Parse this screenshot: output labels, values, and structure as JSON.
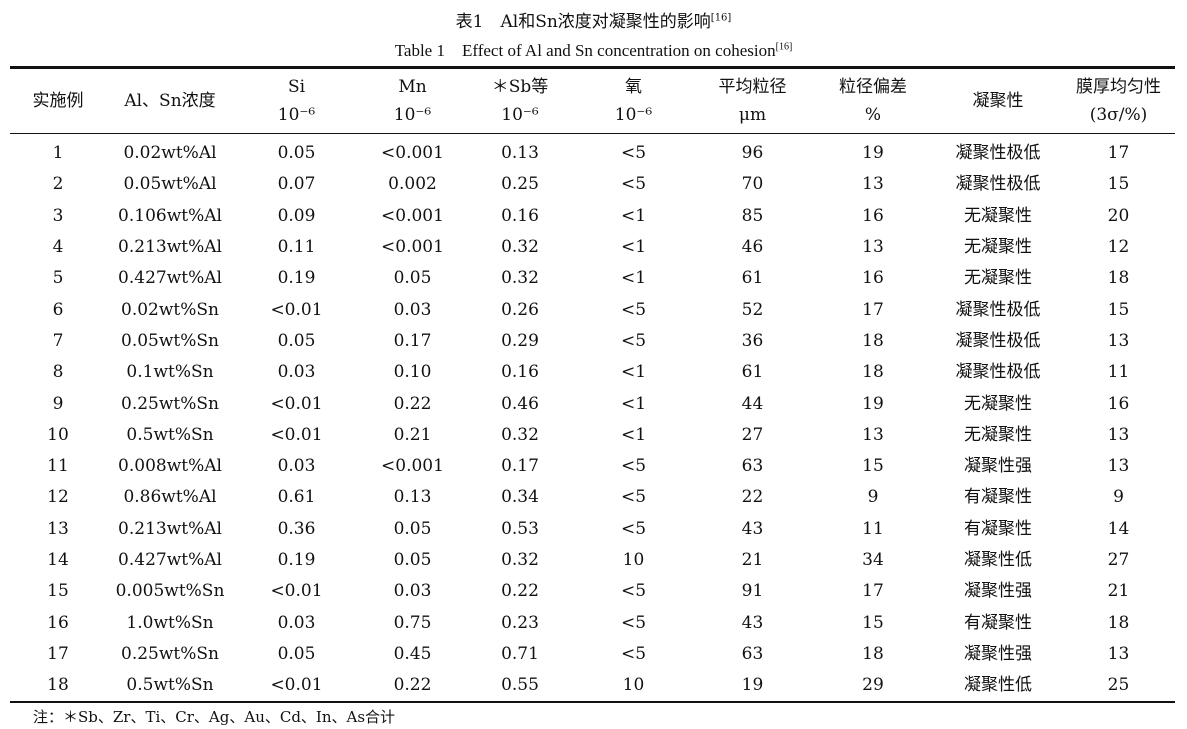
{
  "title": {
    "zh": "表1　Al和Sn浓度对凝聚性的影响",
    "en": "Table 1　Effect of Al and Sn concentration on cohesion",
    "ref": "[16]"
  },
  "columns": [
    {
      "label": "实施例",
      "unit": ""
    },
    {
      "label": "Al、Sn浓度",
      "unit": ""
    },
    {
      "label": "Si",
      "unit": "10⁻⁶"
    },
    {
      "label": "Mn",
      "unit": "10⁻⁶"
    },
    {
      "label": "＊Sb等",
      "unit": "10⁻⁶"
    },
    {
      "label": "氧",
      "unit": "10⁻⁶"
    },
    {
      "label": "平均粒径",
      "unit": "μm"
    },
    {
      "label": "粒径偏差",
      "unit": "%"
    },
    {
      "label": "凝聚性",
      "unit": ""
    },
    {
      "label": "膜厚均匀性",
      "unit": "(3σ/%)"
    }
  ],
  "rows": [
    [
      "1",
      "0.02wt%Al",
      "0.05",
      "<0.001",
      "0.13",
      "<5",
      "96",
      "19",
      "凝聚性极低",
      "17"
    ],
    [
      "2",
      "0.05wt%Al",
      "0.07",
      "0.002",
      "0.25",
      "<5",
      "70",
      "13",
      "凝聚性极低",
      "15"
    ],
    [
      "3",
      "0.106wt%Al",
      "0.09",
      "<0.001",
      "0.16",
      "<1",
      "85",
      "16",
      "无凝聚性",
      "20"
    ],
    [
      "4",
      "0.213wt%Al",
      "0.11",
      "<0.001",
      "0.32",
      "<1",
      "46",
      "13",
      "无凝聚性",
      "12"
    ],
    [
      "5",
      "0.427wt%Al",
      "0.19",
      "0.05",
      "0.32",
      "<1",
      "61",
      "16",
      "无凝聚性",
      "18"
    ],
    [
      "6",
      "0.02wt%Sn",
      "<0.01",
      "0.03",
      "0.26",
      "<5",
      "52",
      "17",
      "凝聚性极低",
      "15"
    ],
    [
      "7",
      "0.05wt%Sn",
      "0.05",
      "0.17",
      "0.29",
      "<5",
      "36",
      "18",
      "凝聚性极低",
      "13"
    ],
    [
      "8",
      "0.1wt%Sn",
      "0.03",
      "0.10",
      "0.16",
      "<1",
      "61",
      "18",
      "凝聚性极低",
      "11"
    ],
    [
      "9",
      "0.25wt%Sn",
      "<0.01",
      "0.22",
      "0.46",
      "<1",
      "44",
      "19",
      "无凝聚性",
      "16"
    ],
    [
      "10",
      "0.5wt%Sn",
      "<0.01",
      "0.21",
      "0.32",
      "<1",
      "27",
      "13",
      "无凝聚性",
      "13"
    ],
    [
      "11",
      "0.008wt%Al",
      "0.03",
      "<0.001",
      "0.17",
      "<5",
      "63",
      "15",
      "凝聚性强",
      "13"
    ],
    [
      "12",
      "0.86wt%Al",
      "0.61",
      "0.13",
      "0.34",
      "<5",
      "22",
      "9",
      "有凝聚性",
      "9"
    ],
    [
      "13",
      "0.213wt%Al",
      "0.36",
      "0.05",
      "0.53",
      "<5",
      "43",
      "11",
      "有凝聚性",
      "14"
    ],
    [
      "14",
      "0.427wt%Al",
      "0.19",
      "0.05",
      "0.32",
      "10",
      "21",
      "34",
      "凝聚性低",
      "27"
    ],
    [
      "15",
      "0.005wt%Sn",
      "<0.01",
      "0.03",
      "0.22",
      "<5",
      "91",
      "17",
      "凝聚性强",
      "21"
    ],
    [
      "16",
      "1.0wt%Sn",
      "0.03",
      "0.75",
      "0.23",
      "<5",
      "43",
      "15",
      "有凝聚性",
      "18"
    ],
    [
      "17",
      "0.25wt%Sn",
      "0.05",
      "0.45",
      "0.71",
      "<5",
      "63",
      "18",
      "凝聚性强",
      "13"
    ],
    [
      "18",
      "0.5wt%Sn",
      "<0.01",
      "0.22",
      "0.55",
      "10",
      "19",
      "29",
      "凝聚性低",
      "25"
    ]
  ],
  "note": "注：＊Sb、Zr、Ti、Cr、Ag、Au、Cd、In、As合计"
}
